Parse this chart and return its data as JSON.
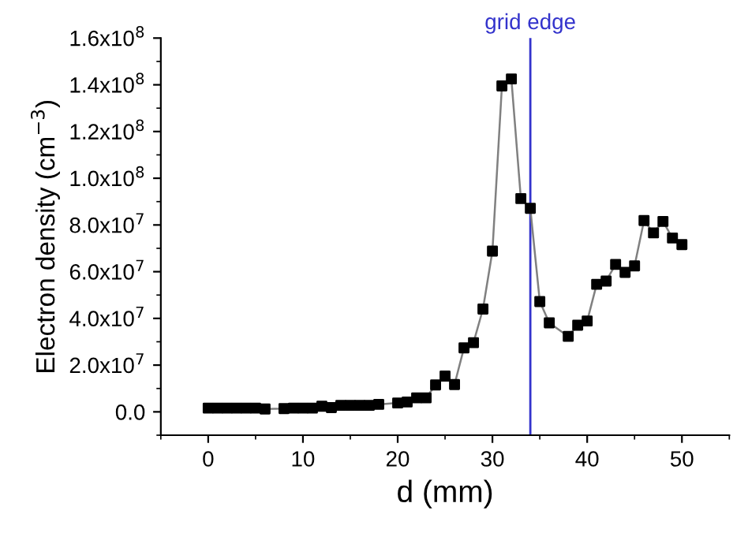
{
  "chart_data": {
    "type": "scatter",
    "xlabel": "d (mm)",
    "ylabel": "Electron density (cm$^{−3}$)",
    "xlim": [
      -5,
      55
    ],
    "xticks": [
      0,
      10,
      20,
      30,
      40,
      50
    ],
    "ylim": [
      -10000000.0,
      160000000.0
    ],
    "yticks": [
      {
        "value": 0,
        "label": "0.0"
      },
      {
        "value": 20000000.0,
        "label": "2.0x10$^{7}$"
      },
      {
        "value": 40000000.0,
        "label": "4.0x10$^{7}$"
      },
      {
        "value": 60000000.0,
        "label": "6.0x10$^{7}$"
      },
      {
        "value": 80000000.0,
        "label": "8.0x10$^{7}$"
      },
      {
        "value": 100000000.0,
        "label": "1.0x10$^{8}$"
      },
      {
        "value": 120000000.0,
        "label": "1.2x10$^{8}$"
      },
      {
        "value": 140000000.0,
        "label": "1.4x10$^{8}$"
      },
      {
        "value": 160000000.0,
        "label": "1.6x10$^{8}$"
      }
    ],
    "x": [
      0,
      1,
      2,
      3,
      4,
      5,
      6,
      8,
      9,
      10,
      11,
      12,
      13,
      14,
      15,
      16,
      17,
      18,
      20,
      21,
      22,
      23,
      24,
      25,
      26,
      27,
      28,
      29,
      30,
      31,
      32,
      33,
      34,
      35,
      36,
      38,
      39,
      40,
      41,
      42,
      43,
      44,
      45,
      46,
      47,
      48,
      49,
      50
    ],
    "series": [
      {
        "type": "line",
        "color": "#808080",
        "marker": "none",
        "values": [
          1600000.0,
          1600000.0,
          1600000.0,
          1600000.0,
          1600000.0,
          1600000.0,
          1200000.0,
          1400000.0,
          1600000.0,
          1600000.0,
          1600000.0,
          2400000.0,
          1800000.0,
          2800000.0,
          2800000.0,
          2800000.0,
          2800000.0,
          3200000.0,
          3800000.0,
          4200000.0,
          6000000.0,
          6000000.0,
          11500000.0,
          15300000.0,
          11700000.0,
          27400000.0,
          29600000.0,
          44000000.0,
          68800000.0,
          139500000.0,
          142500000.0,
          91300000.0,
          87100000.0,
          47200000.0,
          38100000.0,
          32300000.0,
          37100000.0,
          38900000.0,
          54600000.0,
          56000000.0,
          63100000.0,
          59700000.0,
          62500000.0,
          81900000.0,
          76600000.0,
          81500000.0,
          74400000.0,
          71600000.0
        ]
      },
      {
        "color": "#000000",
        "marker": "square",
        "values": [
          1600000.0,
          1600000.0,
          1600000.0,
          1600000.0,
          1600000.0,
          1600000.0,
          1200000.0,
          1400000.0,
          1600000.0,
          1600000.0,
          1600000.0,
          2400000.0,
          1800000.0,
          2800000.0,
          2800000.0,
          2800000.0,
          2800000.0,
          3200000.0,
          3800000.0,
          4200000.0,
          6000000.0,
          6000000.0,
          11500000.0,
          15300000.0,
          11700000.0,
          27400000.0,
          29600000.0,
          44000000.0,
          68800000.0,
          139500000.0,
          142500000.0,
          91300000.0,
          87100000.0,
          47200000.0,
          38100000.0,
          32300000.0,
          37100000.0,
          38900000.0,
          54600000.0,
          56000000.0,
          63100000.0,
          59700000.0,
          62500000.0,
          81900000.0,
          76600000.0,
          81500000.0,
          74400000.0,
          71600000.0
        ]
      }
    ],
    "ref_lines": [
      {
        "axis": "x",
        "value": 34,
        "label": "grid edge",
        "color": "#3333cc"
      }
    ],
    "grid": false,
    "legend": false
  }
}
